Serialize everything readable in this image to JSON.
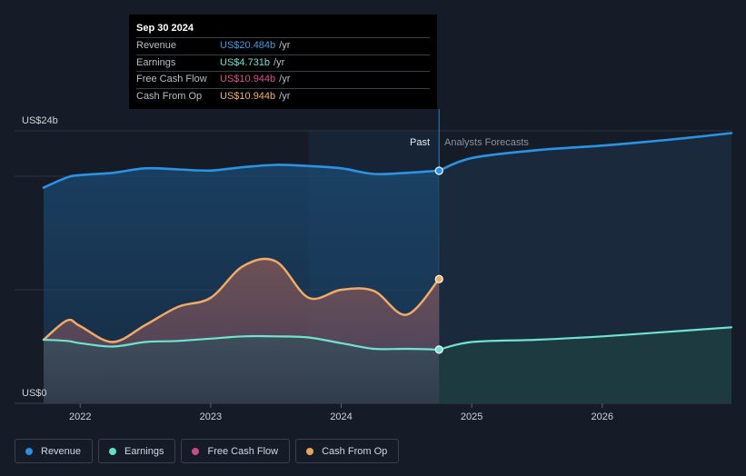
{
  "tooltip": {
    "date": "Sep 30 2024",
    "rows": [
      {
        "label": "Revenue",
        "value": "US$20.484b",
        "unit": "/yr",
        "color": "#3a9ee8"
      },
      {
        "label": "Earnings",
        "value": "US$4.731b",
        "unit": "/yr",
        "color": "#6fe3d0"
      },
      {
        "label": "Free Cash Flow",
        "value": "US$10.944b",
        "unit": "/yr",
        "color": "#d9508b"
      },
      {
        "label": "Cash From Op",
        "value": "US$10.944b",
        "unit": "/yr",
        "color": "#f0b068"
      }
    ]
  },
  "labels": {
    "past": "Past",
    "forecast": "Analysts Forecasts"
  },
  "legend": [
    {
      "label": "Revenue",
      "color": "#2a8fe0"
    },
    {
      "label": "Earnings",
      "color": "#5ee0cc"
    },
    {
      "label": "Free Cash Flow",
      "color": "#c94a86"
    },
    {
      "label": "Cash From Op",
      "color": "#e8a55a"
    }
  ],
  "chart_data": {
    "type": "area",
    "y_unit_label_top": "US$24b",
    "y_unit_label_bottom": "US$0",
    "ylim": [
      0,
      24
    ],
    "xlim": [
      2021.72,
      2026.99
    ],
    "x_ticks": [
      2022,
      2023,
      2024,
      2025,
      2026
    ],
    "x_tick_labels": [
      "2022",
      "2023",
      "2024",
      "2025",
      "2026"
    ],
    "past_end": 2024.75,
    "highlight_start": 2023.75,
    "series": [
      {
        "name": "Revenue",
        "color": "#2b93e3",
        "x": [
          2021.72,
          2021.9,
          2022.0,
          2022.25,
          2022.5,
          2022.75,
          2023.0,
          2023.25,
          2023.5,
          2023.75,
          2024.0,
          2024.25,
          2024.5,
          2024.75
        ],
        "y": [
          19.0,
          19.9,
          20.1,
          20.3,
          20.7,
          20.6,
          20.5,
          20.8,
          21.0,
          20.9,
          20.7,
          20.2,
          20.3,
          20.484
        ]
      },
      {
        "name": "Revenue Forecast",
        "color": "#2b93e3",
        "x": [
          2024.75,
          2025.0,
          2025.5,
          2026.0,
          2026.5,
          2026.99
        ],
        "y": [
          20.484,
          21.6,
          22.3,
          22.7,
          23.2,
          23.8
        ]
      },
      {
        "name": "Earnings",
        "color": "#6fe3d0",
        "x": [
          2021.72,
          2021.9,
          2022.0,
          2022.25,
          2022.5,
          2022.75,
          2023.0,
          2023.25,
          2023.5,
          2023.75,
          2024.0,
          2024.25,
          2024.5,
          2024.75
        ],
        "y": [
          5.6,
          5.5,
          5.3,
          5.0,
          5.4,
          5.5,
          5.7,
          5.9,
          5.9,
          5.8,
          5.3,
          4.8,
          4.8,
          4.731
        ]
      },
      {
        "name": "Earnings Forecast",
        "color": "#6fe3d0",
        "x": [
          2024.75,
          2025.0,
          2025.5,
          2026.0,
          2026.5,
          2026.99
        ],
        "y": [
          4.731,
          5.4,
          5.6,
          5.9,
          6.3,
          6.7
        ]
      },
      {
        "name": "Free Cash Flow",
        "color": "#d9508b",
        "x": [
          2021.72,
          2021.9,
          2022.0,
          2022.25,
          2022.5,
          2022.75,
          2023.0,
          2023.25,
          2023.5,
          2023.75,
          2024.0,
          2024.25,
          2024.5,
          2024.75
        ],
        "y": [
          5.6,
          7.3,
          6.8,
          5.4,
          6.9,
          8.5,
          9.3,
          12.1,
          12.5,
          9.3,
          10.0,
          9.9,
          7.8,
          10.944
        ]
      },
      {
        "name": "Cash From Op",
        "color": "#eeac64",
        "x": [
          2021.72,
          2021.9,
          2022.0,
          2022.25,
          2022.5,
          2022.75,
          2023.0,
          2023.25,
          2023.5,
          2023.75,
          2024.0,
          2024.25,
          2024.5,
          2024.75
        ],
        "y": [
          5.6,
          7.3,
          6.8,
          5.4,
          6.9,
          8.5,
          9.3,
          12.1,
          12.5,
          9.3,
          10.0,
          9.9,
          7.8,
          10.944
        ]
      }
    ]
  }
}
